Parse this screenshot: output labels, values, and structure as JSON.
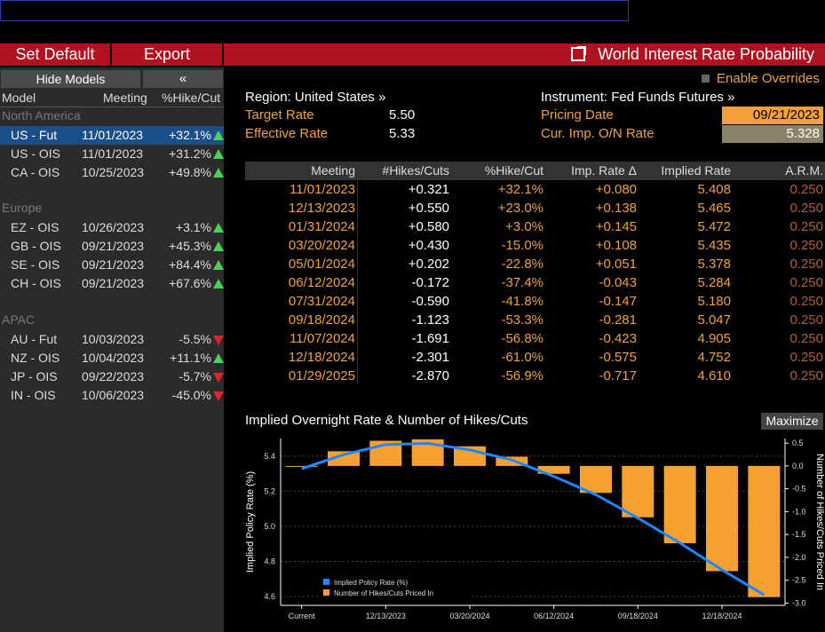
{
  "toolbar": {
    "set_default": "Set Default",
    "export": "Export",
    "title": "World Interest Rate Probability"
  },
  "left": {
    "hide_models": "Hide Models",
    "collapse": "«",
    "headers": {
      "model": "Model",
      "meeting": "Meeting",
      "pct": "%Hike/Cut"
    },
    "regions": [
      {
        "name": "North America",
        "rows": [
          {
            "model": "US - Fut",
            "meeting": "11/01/2023",
            "pct": "+32.1%",
            "dir": "up",
            "selected": true
          },
          {
            "model": "US - OIS",
            "meeting": "11/01/2023",
            "pct": "+31.2%",
            "dir": "up"
          },
          {
            "model": "CA - OIS",
            "meeting": "10/25/2023",
            "pct": "+49.8%",
            "dir": "up"
          }
        ]
      },
      {
        "name": "Europe",
        "rows": [
          {
            "model": "EZ - OIS",
            "meeting": "10/26/2023",
            "pct": "+3.1%",
            "dir": "up"
          },
          {
            "model": "GB - OIS",
            "meeting": "09/21/2023",
            "pct": "+45.3%",
            "dir": "up"
          },
          {
            "model": "SE - OIS",
            "meeting": "09/21/2023",
            "pct": "+84.4%",
            "dir": "up"
          },
          {
            "model": "CH - OIS",
            "meeting": "09/21/2023",
            "pct": "+67.6%",
            "dir": "up"
          }
        ]
      },
      {
        "name": "APAC",
        "rows": [
          {
            "model": "AU - Fut",
            "meeting": "10/03/2023",
            "pct": "-5.5%",
            "dir": "down"
          },
          {
            "model": "NZ - OIS",
            "meeting": "10/04/2023",
            "pct": "+11.1%",
            "dir": "up"
          },
          {
            "model": "JP - OIS",
            "meeting": "09/22/2023",
            "pct": "-5.7%",
            "dir": "down"
          },
          {
            "model": "IN - OIS",
            "meeting": "10/06/2023",
            "pct": "-45.0%",
            "dir": "down"
          }
        ]
      }
    ]
  },
  "info": {
    "enable_overrides": "Enable Overrides",
    "region": "Region: United States »",
    "instrument": "Instrument: Fed Funds Futures »",
    "target_rate_label": "Target Rate",
    "target_rate": "5.50",
    "effective_rate_label": "Effective Rate",
    "effective_rate": "5.33",
    "pricing_date_label": "Pricing Date",
    "pricing_date": "09/21/2023",
    "cur_imp_label": "Cur. Imp. O/N Rate",
    "cur_imp": "5.328"
  },
  "table": {
    "headers": [
      "Meeting",
      "#Hikes/Cuts",
      "%Hike/Cut",
      "Imp. Rate Δ",
      "Implied Rate",
      "A.R.M."
    ],
    "rows": [
      [
        "11/01/2023",
        "+0.321",
        "+32.1%",
        "+0.080",
        "5.408",
        "0.250"
      ],
      [
        "12/13/2023",
        "+0.550",
        "+23.0%",
        "+0.138",
        "5.465",
        "0.250"
      ],
      [
        "01/31/2024",
        "+0.580",
        "+3.0%",
        "+0.145",
        "5.472",
        "0.250"
      ],
      [
        "03/20/2024",
        "+0.430",
        "-15.0%",
        "+0.108",
        "5.435",
        "0.250"
      ],
      [
        "05/01/2024",
        "+0.202",
        "-22.8%",
        "+0.051",
        "5.378",
        "0.250"
      ],
      [
        "06/12/2024",
        "-0.172",
        "-37.4%",
        "-0.043",
        "5.284",
        "0.250"
      ],
      [
        "07/31/2024",
        "-0.590",
        "-41.8%",
        "-0.147",
        "5.180",
        "0.250"
      ],
      [
        "09/18/2024",
        "-1.123",
        "-53.3%",
        "-0.281",
        "5.047",
        "0.250"
      ],
      [
        "11/07/2024",
        "-1.691",
        "-56.8%",
        "-0.423",
        "4.905",
        "0.250"
      ],
      [
        "12/18/2024",
        "-2.301",
        "-61.0%",
        "-0.575",
        "4.752",
        "0.250"
      ],
      [
        "01/29/2025",
        "-2.870",
        "-56.9%",
        "-0.717",
        "4.610",
        "0.250"
      ]
    ]
  },
  "chart": {
    "title": "Implied Overnight Rate & Number of Hikes/Cuts",
    "maximize": "Maximize"
  },
  "chart_data": {
    "type": "bar",
    "title": "",
    "ylabel": "Implied Policy Rate (%)",
    "y2label": "Number of Hikes/Cuts Priced In",
    "ylim": [
      4.55,
      5.5
    ],
    "y2lim": [
      -3.05,
      0.6
    ],
    "yticks": [
      "5.4",
      "5.2",
      "5.0",
      "4.8",
      "4.6"
    ],
    "y2ticks": [
      "0.5",
      "0.0",
      "-0.5",
      "-1.0",
      "-1.5",
      "-2.0",
      "-2.5",
      "-3.0"
    ],
    "xticks": [
      "Current",
      "12/13/2023",
      "03/20/2024",
      "06/12/2024",
      "09/18/2024",
      "12/18/2024"
    ],
    "legend_position": "bottom-left",
    "series": [
      {
        "name": "Implied Policy Rate (%)",
        "kind": "line",
        "color": "#1e88ff",
        "values": [
          5.328,
          5.408,
          5.465,
          5.472,
          5.435,
          5.378,
          5.284,
          5.18,
          5.047,
          4.905,
          4.752,
          4.61
        ]
      },
      {
        "name": "Number of Hikes/Cuts Priced In",
        "kind": "bar",
        "color": "#f7a032",
        "values": [
          0,
          0.321,
          0.55,
          0.58,
          0.43,
          0.202,
          -0.172,
          -0.59,
          -1.123,
          -1.691,
          -2.301,
          -2.87
        ]
      }
    ]
  }
}
